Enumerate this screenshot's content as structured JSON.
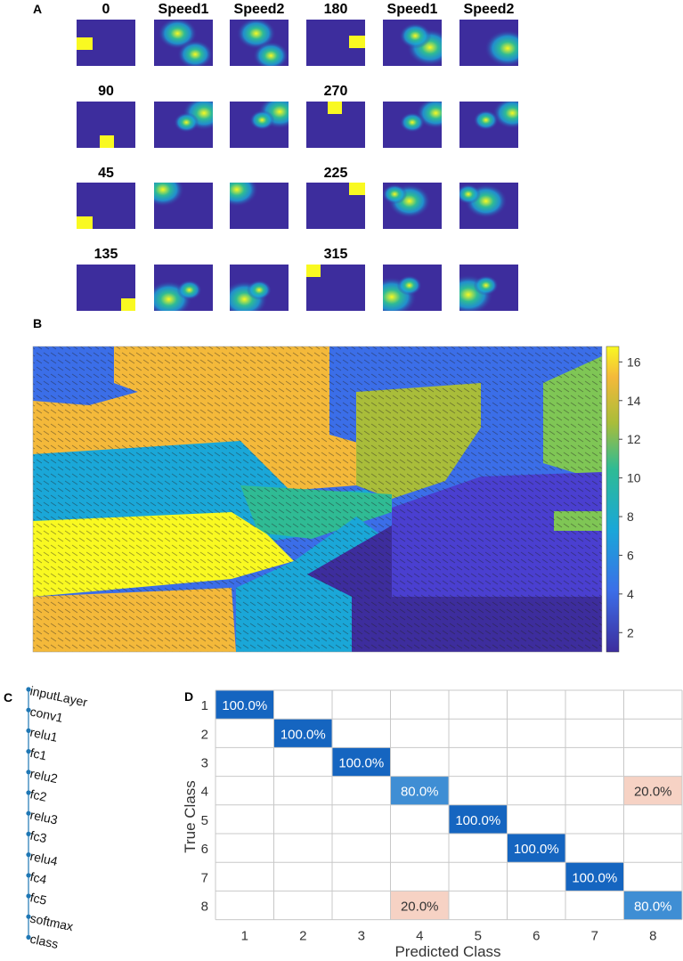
{
  "panels": {
    "a": "A",
    "b": "B",
    "c": "C",
    "d": "D"
  },
  "panel_a": {
    "rows": [
      {
        "titles": [
          "0",
          "Speed1",
          "Speed2",
          "180",
          "Speed1",
          "Speed2"
        ]
      },
      {
        "titles": [
          "90",
          "",
          "",
          "270",
          "",
          ""
        ]
      },
      {
        "titles": [
          "45",
          "",
          "",
          "225",
          "",
          ""
        ]
      },
      {
        "titles": [
          "135",
          "",
          "",
          "315",
          "",
          ""
        ]
      }
    ]
  },
  "colorbar": {
    "ticks": [
      "16",
      "14",
      "12",
      "10",
      "8",
      "6",
      "4",
      "2"
    ]
  },
  "network": {
    "layers": [
      "inputLayer",
      "conv1",
      "relu1",
      "fc1",
      "relu2",
      "fc2",
      "relu3",
      "fc3",
      "relu4",
      "fc4",
      "fc5",
      "softmax",
      "class"
    ]
  },
  "chart_data": {
    "type": "heatmap",
    "title": "",
    "xlabel": "Predicted Class",
    "ylabel": "True Class",
    "x_categories": [
      "1",
      "2",
      "3",
      "4",
      "5",
      "6",
      "7",
      "8"
    ],
    "y_categories": [
      "1",
      "2",
      "3",
      "4",
      "5",
      "6",
      "7",
      "8"
    ],
    "cells": [
      {
        "row": 1,
        "col": 1,
        "label": "100.0%",
        "value": 100
      },
      {
        "row": 2,
        "col": 2,
        "label": "100.0%",
        "value": 100
      },
      {
        "row": 3,
        "col": 3,
        "label": "100.0%",
        "value": 100
      },
      {
        "row": 4,
        "col": 4,
        "label": "80.0%",
        "value": 80
      },
      {
        "row": 4,
        "col": 8,
        "label": "20.0%",
        "value": 20
      },
      {
        "row": 5,
        "col": 5,
        "label": "100.0%",
        "value": 100
      },
      {
        "row": 6,
        "col": 6,
        "label": "100.0%",
        "value": 100
      },
      {
        "row": 7,
        "col": 7,
        "label": "100.0%",
        "value": 100
      },
      {
        "row": 8,
        "col": 4,
        "label": "20.0%",
        "value": 20
      },
      {
        "row": 8,
        "col": 8,
        "label": "80.0%",
        "value": 80
      }
    ],
    "colors": {
      "correct_full": "#1565c0",
      "correct_partial": "#3f8ed4",
      "error": "#f6d2c4",
      "grid": "#c8c8c8"
    }
  },
  "colors": {
    "parula_low": "#3d2d9d",
    "parula_high": "#f9f921"
  }
}
